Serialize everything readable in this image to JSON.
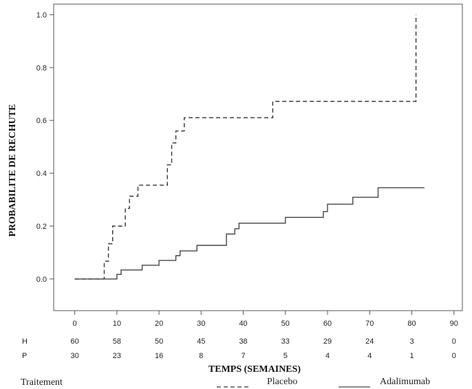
{
  "chart_data": {
    "type": "line",
    "chart_style": "kaplan-meier step curves",
    "xlabel": "TEMPS (SEMAINES)",
    "ylabel": "PROBABILITE DE RECHUTE",
    "xlim": [
      -5,
      92
    ],
    "ylim": [
      -0.12,
      1.04
    ],
    "x_ticks": [
      0,
      10,
      20,
      30,
      40,
      50,
      60,
      70,
      80,
      90
    ],
    "y_ticks": [
      0.0,
      0.2,
      0.4,
      0.6,
      0.8,
      1.0
    ],
    "y_tick_labels": [
      "0.0",
      "0.2",
      "0.4",
      "0.6",
      "0.8",
      "1.0"
    ],
    "grid": false,
    "legend_title": "Traitement",
    "legend_position": "bottom",
    "series": [
      {
        "name": "Placebo",
        "line_style": "dashed",
        "color": "#333333",
        "x": [
          0,
          7,
          7,
          8,
          8,
          9,
          9,
          12,
          12,
          13,
          13,
          15,
          15,
          22,
          22,
          23,
          23,
          24,
          24,
          26,
          26,
          47,
          47,
          81,
          81
        ],
        "y": [
          0,
          0,
          0.067,
          0.067,
          0.133,
          0.133,
          0.2,
          0.2,
          0.267,
          0.267,
          0.313,
          0.313,
          0.355,
          0.355,
          0.432,
          0.432,
          0.515,
          0.515,
          0.56,
          0.56,
          0.61,
          0.61,
          0.672,
          0.672,
          1.0
        ]
      },
      {
        "name": "Adalimumab",
        "line_style": "solid",
        "color": "#444444",
        "x": [
          0,
          10,
          10,
          11,
          11,
          13,
          13,
          16,
          16,
          20,
          20,
          24,
          24,
          25,
          25,
          29,
          29,
          36,
          36,
          38,
          38,
          39,
          39,
          50,
          50,
          59,
          59,
          60,
          60,
          66,
          66,
          72,
          72,
          83
        ],
        "y": [
          0,
          0,
          0.017,
          0.017,
          0.034,
          0.034,
          0.034,
          0.034,
          0.052,
          0.052,
          0.07,
          0.07,
          0.088,
          0.088,
          0.106,
          0.106,
          0.127,
          0.127,
          0.17,
          0.17,
          0.19,
          0.19,
          0.211,
          0.211,
          0.233,
          0.233,
          0.255,
          0.255,
          0.283,
          0.283,
          0.309,
          0.309,
          0.345,
          0.345
        ]
      }
    ],
    "risk_table": {
      "times": [
        0,
        10,
        20,
        30,
        40,
        50,
        60,
        70,
        80,
        90
      ],
      "rows": [
        {
          "label": "H",
          "counts": [
            "60",
            "58",
            "50",
            "45",
            "38",
            "33",
            "29",
            "24",
            "3",
            "0"
          ]
        },
        {
          "label": "P",
          "counts": [
            "30",
            "23",
            "16",
            "8",
            "7",
            "5",
            "4",
            "4",
            "1",
            "0"
          ]
        }
      ]
    }
  }
}
